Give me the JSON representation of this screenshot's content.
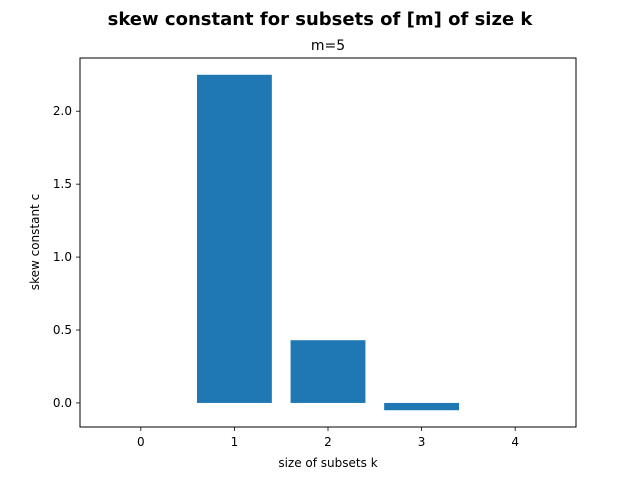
{
  "chart_data": {
    "type": "bar",
    "title": "skew constant for subsets of [m] of size k",
    "subtitle": "m=5",
    "xlabel": "size of subsets k",
    "ylabel": "skew constant c",
    "x": [
      0,
      1,
      2,
      3,
      4
    ],
    "values": [
      0,
      2.25,
      0.43,
      -0.05,
      0
    ],
    "xticks": [
      "0",
      "1",
      "2",
      "3",
      "4"
    ],
    "yticks": [
      "0.0",
      "0.5",
      "1.0",
      "1.5",
      "2.0"
    ],
    "xlim": [
      -0.65,
      4.65
    ],
    "ylim": [
      -0.165,
      2.365
    ],
    "bar_color": "#1f77b4",
    "grid": false,
    "legend": "none"
  }
}
